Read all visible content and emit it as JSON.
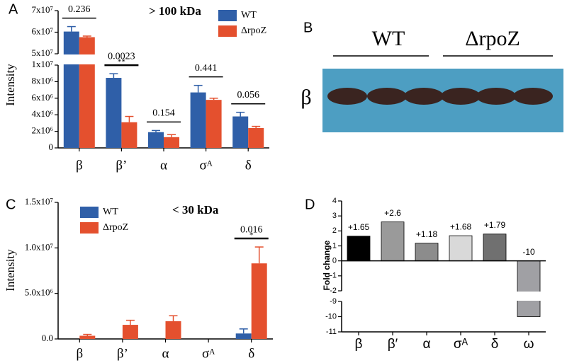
{
  "chart_data": [
    {
      "type": "bar",
      "panel": "A",
      "title": "> 100 kDa",
      "ylabel": "Intensity",
      "categories": [
        "β",
        "β’",
        "α",
        "σᴬ",
        "δ"
      ],
      "series": [
        {
          "name": "WT",
          "color": "#2f5fa8",
          "values": [
            60300000,
            8460000,
            1900000,
            6700000,
            3800000
          ],
          "errors": [
            2300000,
            500000,
            200000,
            850000,
            500000
          ]
        },
        {
          "name": "ΔrpoZ",
          "color": "#e4502e",
          "values": [
            57700000,
            3100000,
            1300000,
            5800000,
            2400000
          ],
          "errors": [
            500000,
            700000,
            300000,
            200000,
            200000
          ]
        }
      ],
      "pvalues": [
        "0.236",
        "0.0023",
        "0.154",
        "0.441",
        "0.056"
      ],
      "stars": [
        null,
        "**",
        null,
        null,
        null
      ],
      "ylim": [
        0,
        70000000
      ],
      "ybreak": [
        10000000,
        50000000
      ],
      "yticks": [
        0,
        {
          "value": 2000000,
          "label": "2x10⁶"
        },
        {
          "value": 4000000,
          "label": "4x10⁶"
        },
        {
          "value": 6000000,
          "label": "6x10⁶"
        },
        {
          "value": 8000000,
          "label": "8x10⁶"
        },
        {
          "value": 10000000,
          "label": "1x10⁷"
        },
        {
          "value": 50000000,
          "label": "5x10⁷"
        },
        {
          "value": 60000000,
          "label": "6x10⁷"
        },
        {
          "value": 70000000,
          "label": "7x10⁷"
        }
      ]
    },
    {
      "type": "blot",
      "panel": "B",
      "groups": [
        "WT",
        "ΔrpoZ"
      ],
      "band_label": "β"
    },
    {
      "type": "bar",
      "panel": "C",
      "title": "< 30 kDa",
      "ylabel": "Intensity",
      "categories": [
        "β",
        "β’",
        "α",
        "σᴬ",
        "δ"
      ],
      "series": [
        {
          "name": "WT",
          "color": "#2f5fa8",
          "values": [
            0,
            0,
            0,
            0,
            600000
          ],
          "errors": [
            null,
            null,
            null,
            null,
            500000
          ]
        },
        {
          "name": "ΔrpoZ",
          "color": "#e4502e",
          "values": [
            350000,
            1550000,
            1950000,
            0,
            8300000
          ],
          "errors": [
            150000,
            500000,
            600000,
            null,
            1800000
          ]
        }
      ],
      "pvalues": [
        null,
        null,
        null,
        null,
        "0.016"
      ],
      "stars": [
        null,
        null,
        null,
        null,
        "*"
      ],
      "ylim": [
        0,
        15000000
      ],
      "yticks": [
        {
          "value": 0,
          "label": "0.0"
        },
        {
          "value": 5000000,
          "label": "5.0x10⁶"
        },
        {
          "value": 10000000,
          "label": "1.0x10⁷"
        },
        {
          "value": 15000000,
          "label": "1.5x10⁷"
        }
      ]
    },
    {
      "type": "bar",
      "panel": "D",
      "ylabel": "Fold change",
      "categories": [
        "β",
        "β′",
        "α",
        "σᴬ",
        "δ",
        "ω"
      ],
      "values": [
        1.65,
        2.6,
        1.18,
        1.68,
        1.79,
        -10
      ],
      "value_labels": [
        "+1.65",
        "+2.6",
        "+1.18",
        "+1.68",
        "+1.79",
        "-10"
      ],
      "colors": [
        "#000000",
        "#9a9a9a",
        "#8c8c8c",
        "#d9d9d9",
        "#707070",
        "#a0a0a4"
      ],
      "ylim": [
        -11,
        4
      ],
      "ybreak": [
        -9,
        -2
      ],
      "yticks": [
        4,
        3,
        2,
        1,
        0,
        -1,
        -2,
        -9,
        -10,
        -11
      ]
    }
  ]
}
